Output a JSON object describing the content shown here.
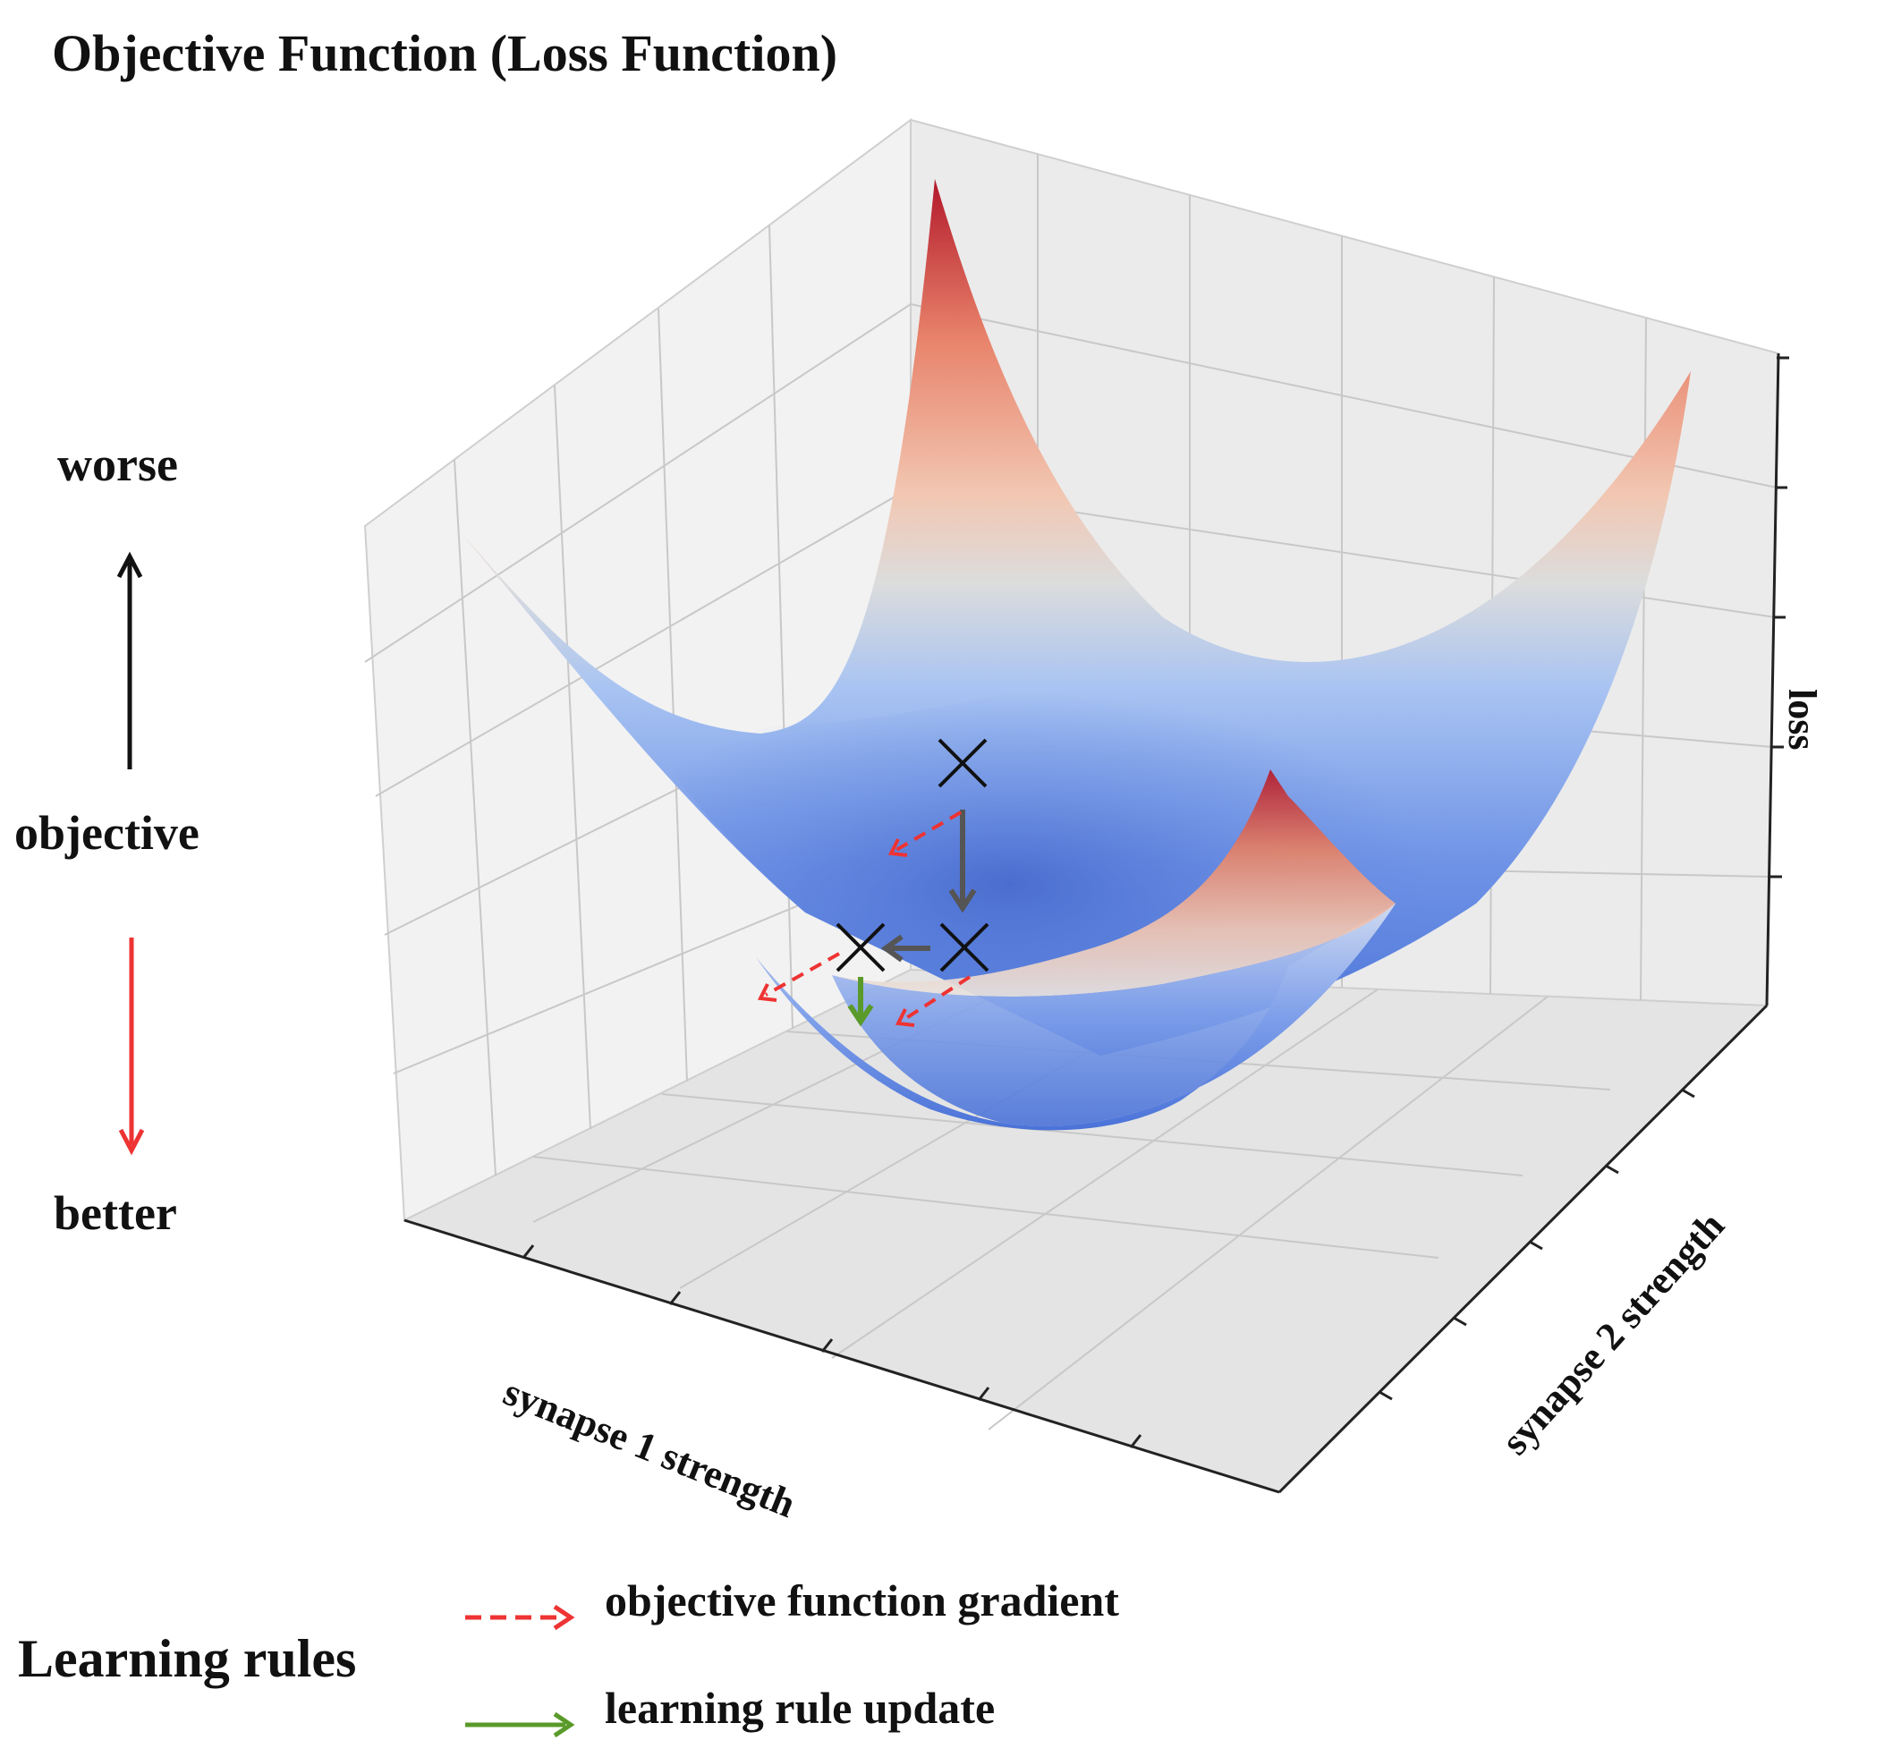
{
  "title": "Objective Function (Loss Function)",
  "side_scale": {
    "top_label": "worse",
    "middle_label": "objective",
    "bottom_label": "better"
  },
  "axes": {
    "x_label": "synapse 1 strength",
    "y_label": "synapse 2 strength",
    "z_label": "loss"
  },
  "legend": {
    "title": "Learning rules",
    "items": [
      {
        "label": "objective function gradient",
        "color": "#ee3333",
        "style": "dashed"
      },
      {
        "label": "learning rule update",
        "color": "#5a9a2a",
        "style": "solid"
      }
    ]
  },
  "colors": {
    "surface_low": "#4a72d8",
    "surface_mid": "#dcdcdc",
    "surface_high": "#b2182b",
    "gradient_arrow": "#ee3333",
    "update_arrow": "#5a9a2a",
    "step_arrow": "#555555",
    "marker": "#111111"
  }
}
